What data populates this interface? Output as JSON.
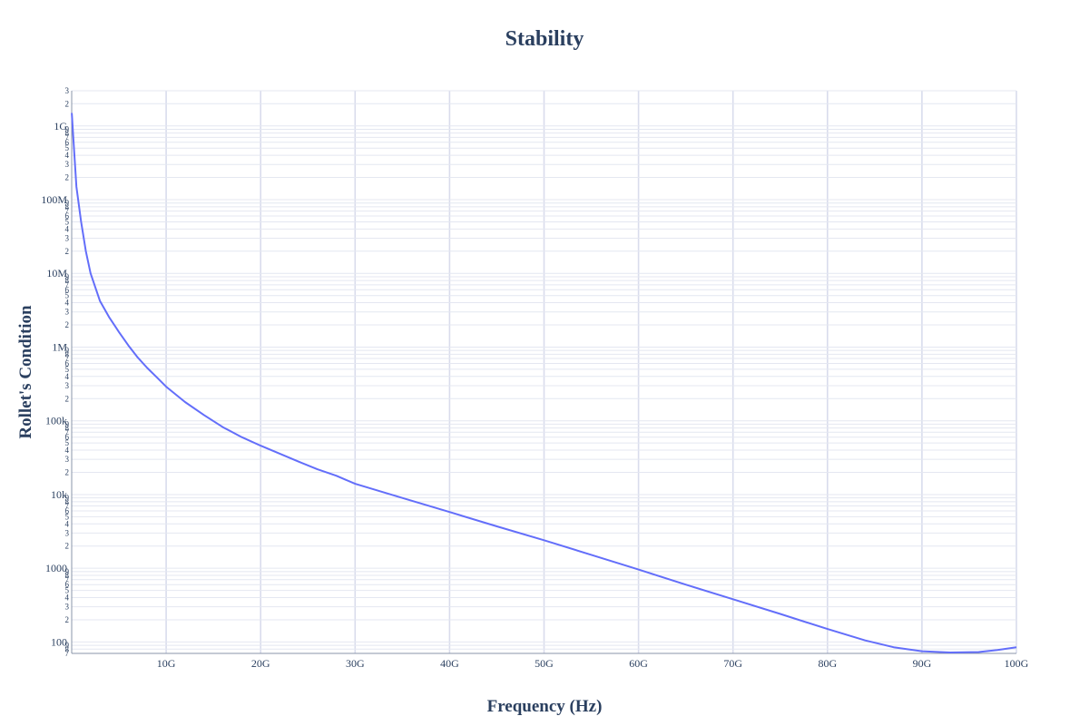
{
  "chart_data": {
    "type": "line",
    "title": "Stability",
    "xlabel": "Frequency (Hz)",
    "ylabel": "Rollet's Condition",
    "x_scale": "linear",
    "y_scale": "log",
    "xlim": [
      0,
      100000000000
    ],
    "ylim": [
      70,
      3000000000
    ],
    "grid": true,
    "legend": "none",
    "line_color": "#636efa",
    "x_ticks": [
      {
        "value": 10000000000,
        "label": "10G"
      },
      {
        "value": 20000000000,
        "label": "20G"
      },
      {
        "value": 30000000000,
        "label": "30G"
      },
      {
        "value": 40000000000,
        "label": "40G"
      },
      {
        "value": 50000000000,
        "label": "50G"
      },
      {
        "value": 60000000000,
        "label": "60G"
      },
      {
        "value": 70000000000,
        "label": "70G"
      },
      {
        "value": 80000000000,
        "label": "80G"
      },
      {
        "value": 90000000000,
        "label": "90G"
      },
      {
        "value": 100000000000,
        "label": "100G"
      }
    ],
    "y_major_ticks": [
      {
        "value": 100,
        "label": "100"
      },
      {
        "value": 1000,
        "label": "1000"
      },
      {
        "value": 10000,
        "label": "10k"
      },
      {
        "value": 100000,
        "label": "100k"
      },
      {
        "value": 1000000,
        "label": "1M"
      },
      {
        "value": 10000000,
        "label": "10M"
      },
      {
        "value": 100000000,
        "label": "100M"
      },
      {
        "value": 1000000000,
        "label": "1G"
      }
    ],
    "y_minor_labels": [
      "2",
      "3",
      "4",
      "5",
      "6",
      "7",
      "8",
      "9"
    ],
    "series": [
      {
        "x": [
          10000000,
          200000000,
          500000000,
          1000000000,
          1500000000,
          2000000000,
          3000000000,
          4000000000,
          5000000000,
          6000000000,
          7000000000,
          8000000000,
          9000000000,
          10000000000,
          12000000000,
          14000000000,
          16000000000,
          18000000000,
          20000000000,
          22000000000,
          24000000000,
          26000000000,
          28000000000,
          30000000000,
          35000000000,
          40000000000,
          45000000000,
          50000000000,
          55000000000,
          60000000000,
          65000000000,
          70000000000,
          75000000000,
          80000000000,
          84000000000,
          87000000000,
          90000000000,
          93000000000,
          96000000000,
          98000000000,
          100000000000
        ],
        "y": [
          1500000000,
          600000000,
          150000000,
          50000000,
          20000000,
          10000000,
          4200000,
          2500000,
          1600000,
          1050000,
          720000,
          520000,
          390000,
          290000,
          180000,
          120000,
          82000,
          60000,
          46000,
          36000,
          28000,
          22000,
          18000,
          14000,
          9000,
          5800,
          3700,
          2400,
          1520,
          960,
          600,
          380,
          240,
          150,
          105,
          85,
          75,
          72,
          73,
          78,
          85
        ]
      }
    ]
  }
}
